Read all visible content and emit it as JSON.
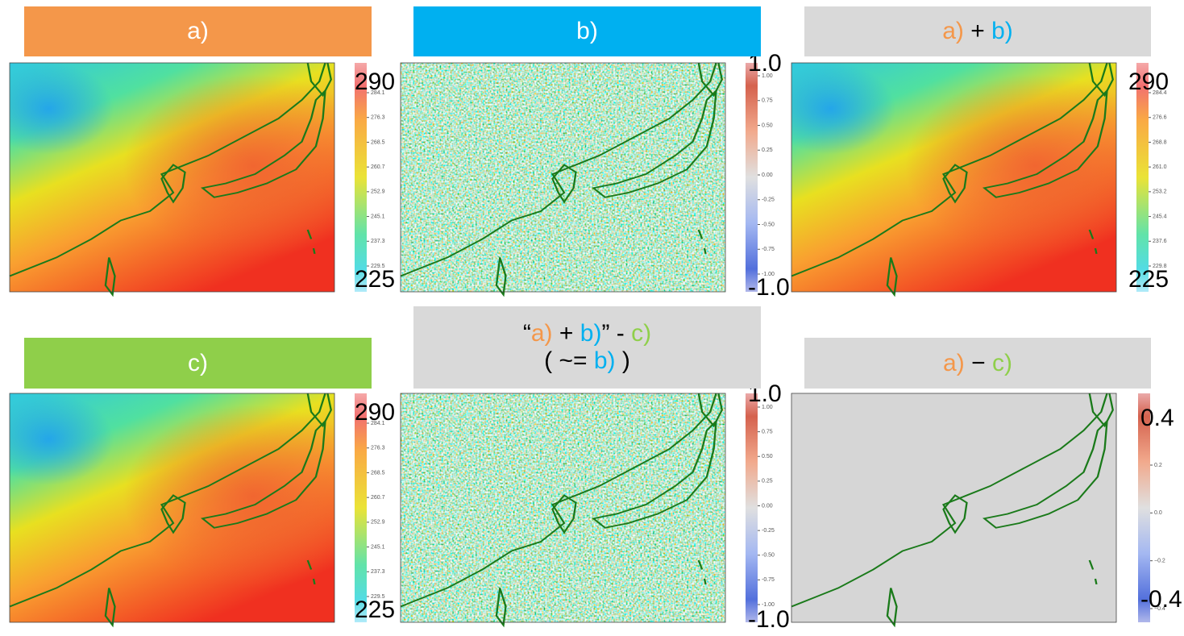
{
  "panels": [
    {
      "header": [
        [
          "a)"
        ]
      ],
      "colorbar": {
        "max_label": "290",
        "min_label": "225",
        "ticks": [
          "284.1",
          "276.3",
          "268.5",
          "260.7",
          "252.9",
          "245.1",
          "237.3",
          "229.5"
        ]
      }
    },
    {
      "header": [
        [
          "b)"
        ]
      ],
      "colorbar": {
        "max_label": "1.0",
        "min_label": "-1.0",
        "ticks": [
          "1.00",
          "0.75",
          "0.50",
          "0.25",
          "0.00",
          "-0.25",
          "-0.50",
          "-0.75",
          "-1.00"
        ]
      }
    },
    {
      "header": [
        [
          "a)",
          " + ",
          "b)"
        ]
      ],
      "colorbar": {
        "max_label": "290",
        "min_label": "225",
        "ticks": [
          "284.4",
          "276.6",
          "268.8",
          "261.0",
          "253.2",
          "245.4",
          "237.6",
          "229.8"
        ]
      }
    },
    {
      "header": [
        [
          "c)"
        ]
      ],
      "colorbar": {
        "max_label": "290",
        "min_label": "225",
        "ticks": [
          "284.1",
          "276.3",
          "268.5",
          "260.7",
          "252.9",
          "245.1",
          "237.3",
          "229.5"
        ]
      }
    },
    {
      "header": [
        [
          "“",
          "a)",
          " + ",
          "b)",
          "” - ",
          "c)"
        ],
        [
          "( ~= ",
          "b)",
          " )"
        ]
      ],
      "colorbar": {
        "max_label": "1.0",
        "min_label": "-1.0",
        "ticks": [
          "1.00",
          "0.75",
          "0.50",
          "0.25",
          "0.00",
          "-0.25",
          "-0.50",
          "-0.75",
          "-1.00"
        ]
      }
    },
    {
      "header": [
        [
          "a)",
          " − ",
          "c)"
        ]
      ],
      "colorbar": {
        "max_label": "0.4",
        "min_label": "-0.4",
        "ticks": [
          "0.2",
          "0.0",
          "−0.2",
          "−0.4"
        ]
      }
    }
  ]
}
